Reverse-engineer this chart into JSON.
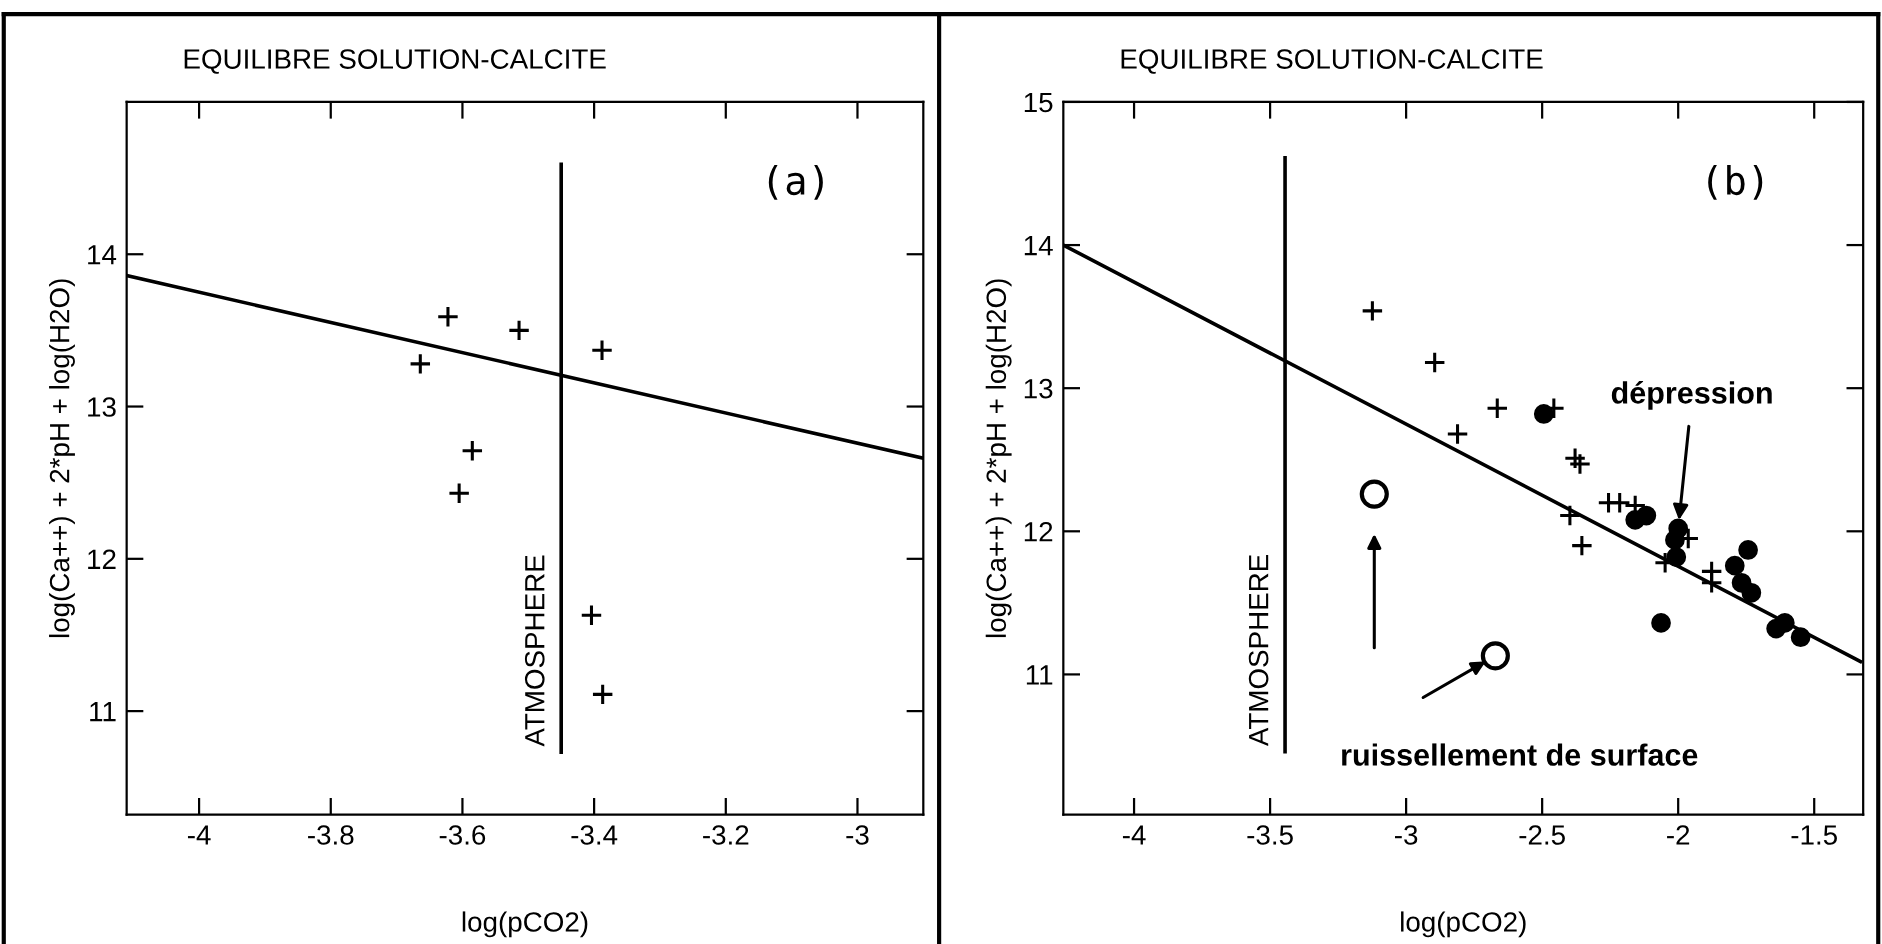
{
  "chart_data": [
    {
      "type": "scatter",
      "title": "EQUILIBRE SOLUTION-CALCITE",
      "xlabel": "log(pCO2)",
      "ylabel": "log(Ca++) + 2*pH + log(H2O)",
      "xlim": [
        -4.11,
        -2.9
      ],
      "ylim": [
        10.32,
        15
      ],
      "xticks": [
        -4,
        -3.8,
        -3.6,
        -3.4,
        -3.2,
        -3
      ],
      "yticks": [
        11,
        12,
        13,
        14
      ],
      "grid": false,
      "legend": false,
      "annotations": [
        "(a)"
      ],
      "series": [
        {
          "type": "line",
          "color": "#000000",
          "marker": "none",
          "x": [
            -4.11,
            -2.9
          ],
          "values": [
            13.86,
            12.66
          ]
        },
        {
          "type": "line",
          "name": "ATMOSPHERE",
          "color": "#000000",
          "marker": "none",
          "x": [
            -3.45,
            -3.45
          ],
          "values": [
            10.73,
            14.59
          ]
        },
        {
          "color": "#000000",
          "marker": "cross",
          "x": [
            -3.664,
            -3.622,
            -3.514,
            -3.388,
            -3.585,
            -3.605,
            -3.404,
            -3.387
          ],
          "values": [
            13.28,
            13.59,
            13.5,
            13.37,
            12.71,
            12.43,
            11.63,
            11.11
          ]
        }
      ]
    },
    {
      "type": "scatter",
      "title": "EQUILIBRE SOLUTION-CALCITE",
      "xlabel": "log(pCO2)",
      "ylabel": "log(Ca++) + 2*pH + log(H2O)",
      "xlim": [
        -4.26,
        -1.32
      ],
      "ylim": [
        10.02,
        15
      ],
      "xticks": [
        -4,
        -3.5,
        -3,
        -2.5,
        -2,
        -1.5
      ],
      "yticks": [
        11,
        12,
        13,
        14,
        15
      ],
      "grid": false,
      "legend": false,
      "annotations": [
        "(b)",
        {
          "text": "dépression",
          "x": -2.0,
          "y": 12.02
        },
        "ruissellement de surface"
      ],
      "series": [
        {
          "type": "line",
          "color": "#000000",
          "marker": "none",
          "x": [
            -4.26,
            -1.33
          ],
          "values": [
            14.0,
            11.09
          ]
        },
        {
          "type": "line",
          "name": "ATMOSPHERE",
          "color": "#000000",
          "marker": "none",
          "x": [
            -3.445,
            -3.445
          ],
          "values": [
            10.46,
            14.61
          ]
        },
        {
          "color": "#000000",
          "marker": "cross",
          "x": [
            -3.124,
            -2.895,
            -2.665,
            -2.811,
            -2.457,
            -2.379,
            -2.361,
            -2.398,
            -2.354,
            -2.256,
            -2.215,
            -2.158,
            -2.048,
            -1.963,
            -1.877,
            -1.877
          ],
          "values": [
            13.54,
            13.18,
            12.86,
            12.68,
            12.86,
            12.51,
            12.47,
            12.11,
            11.9,
            12.2,
            12.2,
            12.18,
            11.78,
            11.95,
            11.72,
            11.64
          ]
        },
        {
          "color": "#000000",
          "marker": "circle",
          "x": [
            -2.494,
            -2.158,
            -2.117,
            -2.012,
            -2.0,
            -2.007,
            -2.063,
            -1.792,
            -1.743,
            -1.767,
            -1.731,
            -1.64,
            -1.608,
            -1.55
          ],
          "values": [
            12.82,
            12.08,
            12.11,
            11.94,
            12.02,
            11.82,
            11.36,
            11.76,
            11.87,
            11.64,
            11.57,
            11.32,
            11.36,
            11.26
          ]
        },
        {
          "color": "#000000",
          "marker": "circle",
          "x": [
            -3.117,
            -2.672
          ],
          "values": [
            12.26,
            11.13
          ]
        }
      ]
    }
  ]
}
